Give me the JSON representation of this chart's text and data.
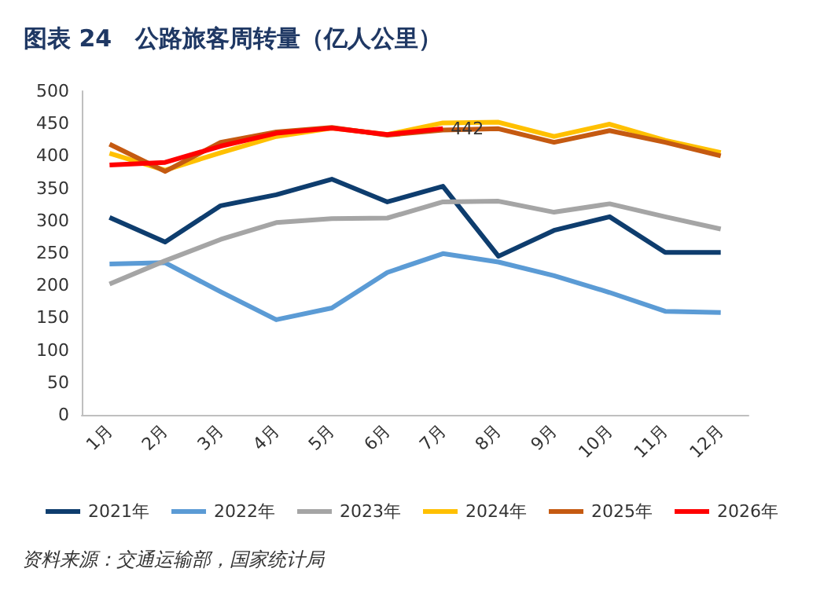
{
  "chart_data": {
    "type": "line",
    "title": "图表 24　公路旅客周转量（亿人公里）",
    "categories": [
      "1月",
      "2月",
      "3月",
      "4月",
      "5月",
      "6月",
      "7月",
      "8月",
      "9月",
      "10月",
      "11月",
      "12月"
    ],
    "series": [
      {
        "name": "2021年",
        "color": "#0e3d6e",
        "values": [
          305,
          267,
          323,
          340,
          364,
          329,
          353,
          245,
          285,
          306,
          251,
          251
        ]
      },
      {
        "name": "2022年",
        "color": "#5b9bd5",
        "values": [
          233,
          235,
          190,
          147,
          165,
          220,
          249,
          236,
          215,
          189,
          160,
          158
        ]
      },
      {
        "name": "2023年",
        "color": "#a5a5a5",
        "values": [
          202,
          238,
          271,
          297,
          303,
          304,
          329,
          330,
          313,
          326,
          306,
          287
        ]
      },
      {
        "name": "2024年",
        "color": "#ffc000",
        "values": [
          404,
          378,
          405,
          430,
          443,
          433,
          451,
          452,
          430,
          449,
          424,
          405
        ]
      },
      {
        "name": "2025年",
        "color": "#c55a11",
        "values": [
          418,
          376,
          421,
          437,
          444,
          432,
          440,
          442,
          421,
          439,
          421,
          400
        ]
      },
      {
        "name": "2026年",
        "color": "#ff0000",
        "values": [
          386,
          390,
          415,
          435,
          443,
          433,
          442,
          null,
          null,
          null,
          null,
          null
        ],
        "value_labels": [
          null,
          null,
          null,
          null,
          null,
          null,
          "442",
          null,
          null,
          null,
          null,
          null
        ]
      }
    ],
    "ylim": [
      0,
      500
    ],
    "yticks": [
      0,
      50,
      100,
      150,
      200,
      250,
      300,
      350,
      400,
      450,
      500
    ],
    "grid": false,
    "legend": "bottom",
    "marker": "none",
    "line_style": "solid",
    "annotations": [
      "资料来源：交通运输部，国家统计局"
    ]
  }
}
